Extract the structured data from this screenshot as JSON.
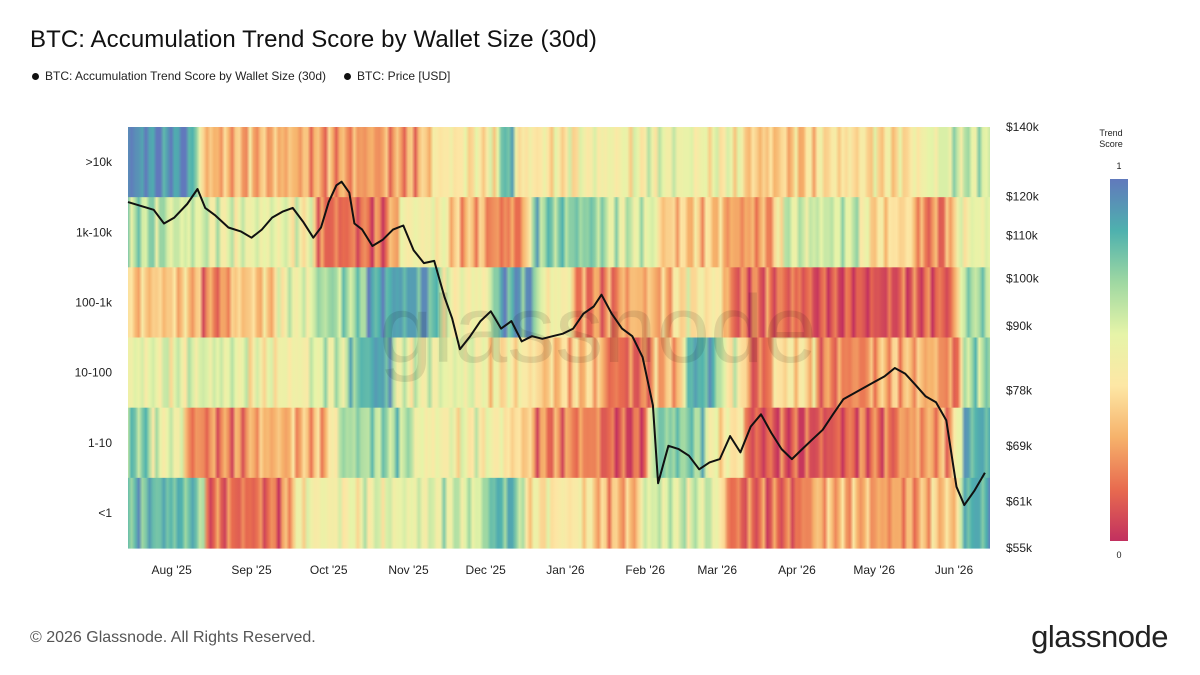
{
  "title": "BTC: Accumulation Trend Score by Wallet Size (30d)",
  "legend": {
    "series1": "BTC: Accumulation Trend Score by Wallet Size (30d)",
    "series2": "BTC: Price [USD]"
  },
  "footer": {
    "copyright": "© 2026 Glassnode. All Rights Reserved.",
    "logo": "glassnode"
  },
  "watermark": "glassnode",
  "colorbar": {
    "title_line1": "Trend",
    "title_line2": "Score",
    "max_label": "1",
    "min_label": "0",
    "colors": [
      "#c2305f",
      "#e86b4f",
      "#f6b26b",
      "#fde7a5",
      "#e6f4a8",
      "#9fd8a2",
      "#4eb1ae",
      "#6179bc"
    ]
  },
  "chart_data": {
    "type": "heatmap",
    "title": "BTC: Accumulation Trend Score by Wallet Size (30d)",
    "x_ticks": [
      "Aug '25",
      "Sep '25",
      "Oct '25",
      "Nov '25",
      "Dec '25",
      "Jan '26",
      "Feb '26",
      "Mar '26",
      "Apr '26",
      "May '26",
      "Jun '26"
    ],
    "x_start": "2025-07-15",
    "x_end": "2026-06-15",
    "rows": [
      {
        "label": ">10k",
        "segments": [
          [
            0,
            0.95
          ],
          [
            0.09,
            0.3
          ],
          [
            0.22,
            0.25
          ],
          [
            0.36,
            0.45
          ],
          [
            0.44,
            0.88
          ],
          [
            0.45,
            0.45
          ],
          [
            0.53,
            0.5
          ],
          [
            0.61,
            0.55
          ],
          [
            0.66,
            0.5
          ],
          [
            0.72,
            0.35
          ],
          [
            0.8,
            0.42
          ],
          [
            0.93,
            0.55
          ],
          [
            0.95,
            0.62
          ]
        ]
      },
      {
        "label": "1k-10k",
        "segments": [
          [
            0,
            0.68
          ],
          [
            0.05,
            0.6
          ],
          [
            0.1,
            0.55
          ],
          [
            0.2,
            0.5
          ],
          [
            0.22,
            0.15
          ],
          [
            0.32,
            0.5
          ],
          [
            0.38,
            0.3
          ],
          [
            0.42,
            0.2
          ],
          [
            0.47,
            0.75
          ],
          [
            0.56,
            0.6
          ],
          [
            0.62,
            0.35
          ],
          [
            0.7,
            0.25
          ],
          [
            0.76,
            0.6
          ],
          [
            0.8,
            0.62
          ],
          [
            0.86,
            0.4
          ],
          [
            0.92,
            0.2
          ],
          [
            0.96,
            0.5
          ],
          [
            0.98,
            0.55
          ]
        ]
      },
      {
        "label": "100-1k",
        "segments": [
          [
            0,
            0.35
          ],
          [
            0.09,
            0.2
          ],
          [
            0.12,
            0.35
          ],
          [
            0.18,
            0.55
          ],
          [
            0.22,
            0.7
          ],
          [
            0.28,
            0.88
          ],
          [
            0.37,
            0.5
          ],
          [
            0.43,
            0.88
          ],
          [
            0.48,
            0.5
          ],
          [
            0.52,
            0.2
          ],
          [
            0.58,
            0.3
          ],
          [
            0.64,
            0.45
          ],
          [
            0.7,
            0.15
          ],
          [
            0.8,
            0.08
          ],
          [
            0.9,
            0.12
          ],
          [
            0.97,
            0.7
          ]
        ]
      },
      {
        "label": "10-100",
        "segments": [
          [
            0,
            0.55
          ],
          [
            0.08,
            0.58
          ],
          [
            0.14,
            0.5
          ],
          [
            0.22,
            0.6
          ],
          [
            0.26,
            0.8
          ],
          [
            0.28,
            0.88
          ],
          [
            0.31,
            0.55
          ],
          [
            0.42,
            0.45
          ],
          [
            0.48,
            0.35
          ],
          [
            0.56,
            0.15
          ],
          [
            0.61,
            0.3
          ],
          [
            0.65,
            0.85
          ],
          [
            0.69,
            0.5
          ],
          [
            0.72,
            0.15
          ],
          [
            0.75,
            0.42
          ],
          [
            0.78,
            0.4
          ],
          [
            0.8,
            0.2
          ],
          [
            0.87,
            0.3
          ],
          [
            0.95,
            0.2
          ],
          [
            0.97,
            0.7
          ]
        ]
      },
      {
        "label": "1-10",
        "segments": [
          [
            0,
            0.75
          ],
          [
            0.03,
            0.55
          ],
          [
            0.07,
            0.2
          ],
          [
            0.15,
            0.3
          ],
          [
            0.25,
            0.7
          ],
          [
            0.34,
            0.5
          ],
          [
            0.45,
            0.38
          ],
          [
            0.47,
            0.2
          ],
          [
            0.56,
            0.1
          ],
          [
            0.61,
            0.75
          ],
          [
            0.68,
            0.45
          ],
          [
            0.72,
            0.1
          ],
          [
            0.85,
            0.15
          ],
          [
            0.9,
            0.25
          ],
          [
            0.97,
            0.85
          ]
        ]
      },
      {
        "label": "<1",
        "segments": [
          [
            0,
            0.82
          ],
          [
            0.07,
            0.8
          ],
          [
            0.09,
            0.15
          ],
          [
            0.2,
            0.5
          ],
          [
            0.28,
            0.55
          ],
          [
            0.37,
            0.6
          ],
          [
            0.42,
            0.82
          ],
          [
            0.46,
            0.45
          ],
          [
            0.55,
            0.3
          ],
          [
            0.6,
            0.6
          ],
          [
            0.7,
            0.15
          ],
          [
            0.8,
            0.3
          ],
          [
            0.87,
            0.25
          ],
          [
            0.93,
            0.35
          ],
          [
            0.97,
            0.85
          ]
        ]
      }
    ],
    "y2_ticks": [
      "$140k",
      "$120k",
      "$110k",
      "$100k",
      "$90k",
      "$78k",
      "$69k",
      "$61k",
      "$55k"
    ],
    "y2_tick_values": [
      140000,
      120000,
      110000,
      100000,
      90000,
      78000,
      69000,
      61000,
      55000
    ],
    "y2_range": [
      55000,
      140000
    ],
    "y2_scale": "log",
    "price_series": {
      "name": "BTC: Price [USD]",
      "x": [
        "2025-07-15",
        "2025-07-20",
        "2025-07-25",
        "2025-07-29",
        "2025-08-02",
        "2025-08-07",
        "2025-08-11",
        "2025-08-14",
        "2025-08-18",
        "2025-08-23",
        "2025-08-28",
        "2025-09-01",
        "2025-09-05",
        "2025-09-09",
        "2025-09-13",
        "2025-09-17",
        "2025-09-21",
        "2025-09-25",
        "2025-09-28",
        "2025-10-01",
        "2025-10-04",
        "2025-10-06",
        "2025-10-09",
        "2025-10-11",
        "2025-10-14",
        "2025-10-18",
        "2025-10-22",
        "2025-10-26",
        "2025-10-30",
        "2025-11-03",
        "2025-11-07",
        "2025-11-11",
        "2025-11-15",
        "2025-11-18",
        "2025-11-21",
        "2025-11-25",
        "2025-11-29",
        "2025-12-03",
        "2025-12-07",
        "2025-12-11",
        "2025-12-15",
        "2025-12-19",
        "2025-12-23",
        "2025-12-27",
        "2025-12-31",
        "2026-01-04",
        "2026-01-08",
        "2026-01-12",
        "2026-01-15",
        "2026-01-19",
        "2026-01-23",
        "2026-01-27",
        "2026-01-31",
        "2026-02-04",
        "2026-02-06",
        "2026-02-10",
        "2026-02-14",
        "2026-02-18",
        "2026-02-22",
        "2026-02-26",
        "2026-03-02",
        "2026-03-06",
        "2026-03-10",
        "2026-03-14",
        "2026-03-18",
        "2026-03-22",
        "2026-03-26",
        "2026-03-30",
        "2026-04-03",
        "2026-04-07",
        "2026-04-11",
        "2026-04-15",
        "2026-04-19",
        "2026-04-23",
        "2026-04-27",
        "2026-05-01",
        "2026-05-05",
        "2026-05-09",
        "2026-05-13",
        "2026-05-17",
        "2026-05-21",
        "2026-05-25",
        "2026-05-29",
        "2026-06-02",
        "2026-06-05",
        "2026-06-09",
        "2026-06-13"
      ],
      "values": [
        118500,
        117500,
        116500,
        113000,
        114500,
        118000,
        122000,
        117000,
        115000,
        112000,
        111000,
        109500,
        111500,
        114500,
        116000,
        117000,
        113500,
        109500,
        112000,
        118500,
        123000,
        124000,
        121000,
        113000,
        111500,
        107500,
        109000,
        111500,
        112500,
        106500,
        103500,
        104000,
        96000,
        91500,
        85500,
        88000,
        91000,
        93000,
        89500,
        91000,
        87000,
        88000,
        87500,
        88000,
        88500,
        89500,
        92500,
        94000,
        96500,
        92500,
        89500,
        88000,
        84000,
        75500,
        63500,
        69000,
        68500,
        67500,
        65500,
        66500,
        67000,
        70500,
        68000,
        72000,
        74000,
        71000,
        68500,
        67000,
        68500,
        70000,
        71500,
        74000,
        76500,
        77500,
        78500,
        79500,
        80500,
        82000,
        81000,
        79000,
        77000,
        76000,
        73000,
        63000,
        60500,
        62500,
        65000
      ]
    }
  }
}
